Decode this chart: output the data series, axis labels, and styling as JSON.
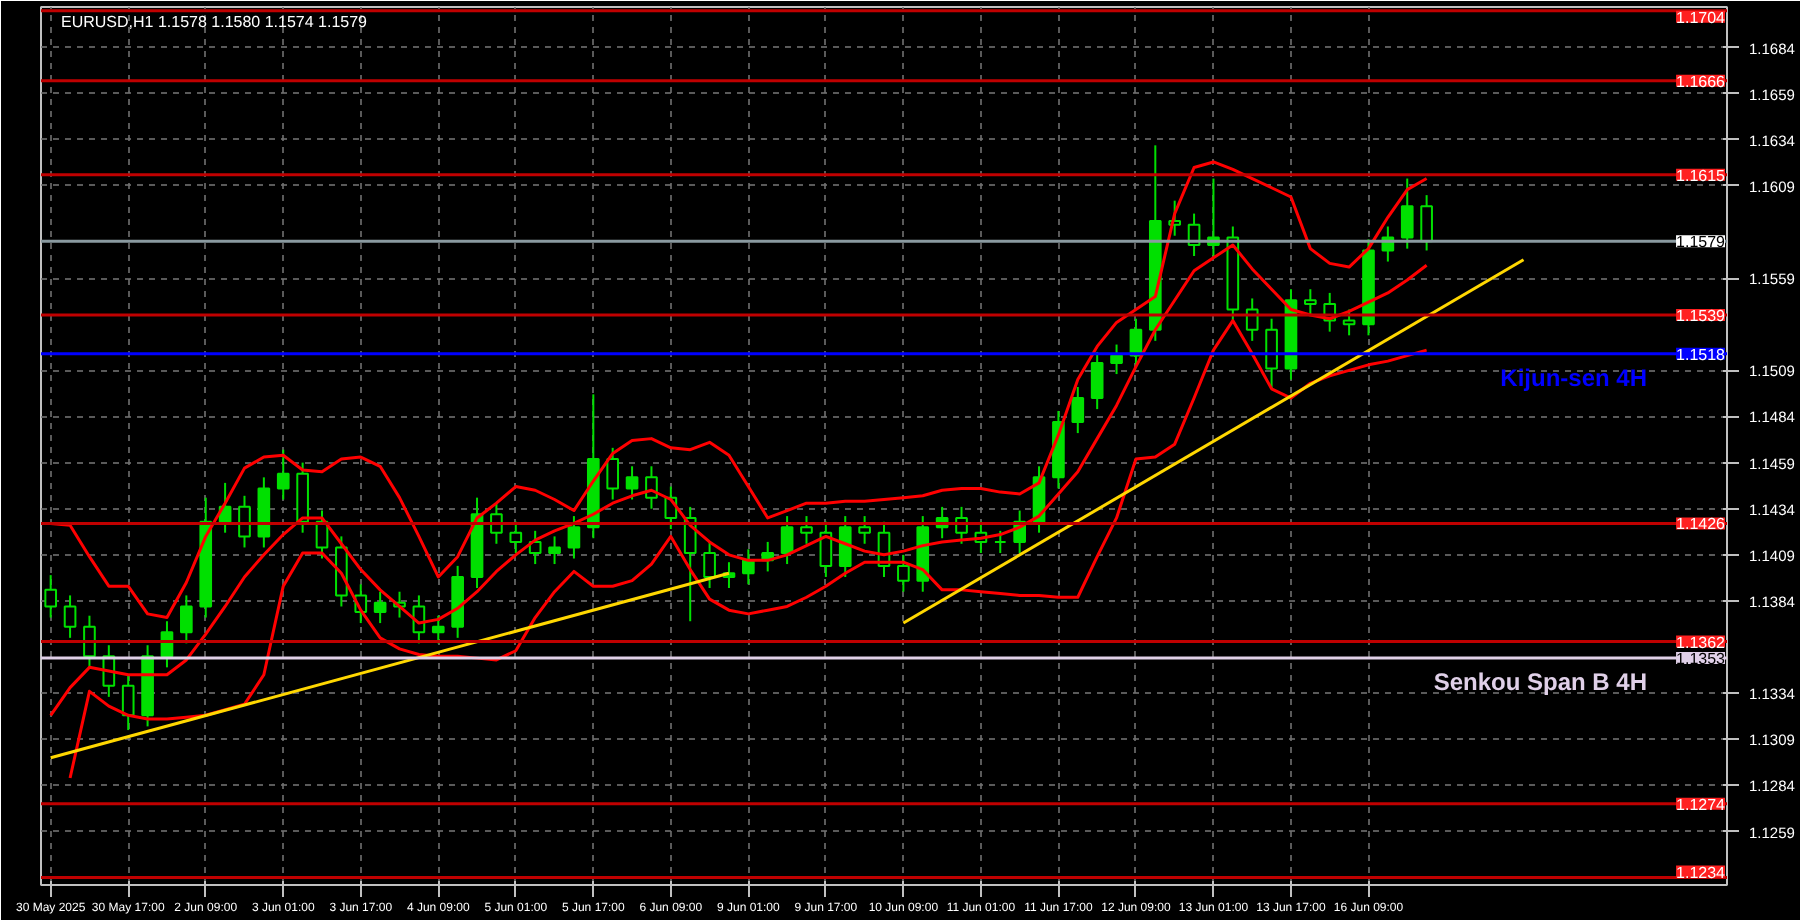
{
  "chart_data": {
    "type": "candlestick",
    "title": "EURUSD,H1  1.1578 1.1580 1.1574 1.1579",
    "color": "#00e000",
    "categories": [
      "30 May 2025",
      null,
      null,
      null,
      "30 May 17:00",
      null,
      null,
      null,
      "2 Jun 09:00",
      null,
      null,
      null,
      "3 Jun 01:00",
      null,
      null,
      null,
      "3 Jun 17:00",
      null,
      null,
      null,
      "4 Jun 09:00",
      null,
      null,
      null,
      "5 Jun 01:00",
      null,
      null,
      null,
      "5 Jun 17:00",
      null,
      null,
      null,
      "6 Jun 09:00",
      null,
      null,
      null,
      "9 Jun 01:00",
      null,
      null,
      null,
      "9 Jun 17:00",
      null,
      null,
      null,
      "10 Jun 09:00",
      null,
      null,
      null,
      "11 Jun 01:00",
      null,
      null,
      null,
      "11 Jun 17:00",
      null,
      null,
      null,
      "12 Jun 09:00",
      null,
      null,
      null,
      "13 Jun 01:00",
      null,
      null,
      null,
      "13 Jun 17:00",
      null,
      null,
      null,
      "16 Jun 09:00",
      null,
      null,
      null,
      null,
      null,
      null,
      null,
      null,
      null,
      null,
      null,
      null,
      null,
      null,
      null,
      null,
      null,
      null
    ],
    "ohlc": [
      [
        1.139,
        1.1398,
        1.1375,
        1.1381
      ],
      [
        1.1381,
        1.1387,
        1.1364,
        1.137
      ],
      [
        1.137,
        1.1376,
        1.1348,
        1.1354
      ],
      [
        1.1354,
        1.136,
        1.1332,
        1.1338
      ],
      [
        1.1338,
        1.1344,
        1.1314,
        1.1322
      ],
      [
        1.1322,
        1.136,
        1.1316,
        1.1354
      ],
      [
        1.1354,
        1.1373,
        1.1348,
        1.1367
      ],
      [
        1.1367,
        1.1387,
        1.1361,
        1.1381
      ],
      [
        1.1381,
        1.144,
        1.1375,
        1.1427
      ],
      [
        1.1427,
        1.1448,
        1.1421,
        1.1435
      ],
      [
        1.1435,
        1.1441,
        1.1413,
        1.1419
      ],
      [
        1.1419,
        1.1451,
        1.1413,
        1.1445
      ],
      [
        1.1445,
        1.1466,
        1.1439,
        1.1453
      ],
      [
        1.1453,
        1.1459,
        1.1421,
        1.1427
      ],
      [
        1.1427,
        1.1433,
        1.1407,
        1.1413
      ],
      [
        1.1413,
        1.1419,
        1.1381,
        1.1387
      ],
      [
        1.1387,
        1.1393,
        1.1372,
        1.1378
      ],
      [
        1.1378,
        1.1389,
        1.1372,
        1.1383
      ],
      [
        1.1383,
        1.1389,
        1.1375,
        1.1381
      ],
      [
        1.1381,
        1.1387,
        1.1361,
        1.1367
      ],
      [
        1.1367,
        1.1376,
        1.1361,
        1.137
      ],
      [
        1.137,
        1.1403,
        1.1364,
        1.1397
      ],
      [
        1.1397,
        1.144,
        1.1391,
        1.1431
      ],
      [
        1.1431,
        1.1437,
        1.1415,
        1.1421
      ],
      [
        1.1421,
        1.1427,
        1.141,
        1.1416
      ],
      [
        1.1416,
        1.1422,
        1.1404,
        1.141
      ],
      [
        1.141,
        1.1419,
        1.1404,
        1.1413
      ],
      [
        1.1413,
        1.143,
        1.1407,
        1.1424
      ],
      [
        1.1424,
        1.1496,
        1.1418,
        1.1461
      ],
      [
        1.1461,
        1.1467,
        1.1439,
        1.1445
      ],
      [
        1.1445,
        1.1457,
        1.1439,
        1.1451
      ],
      [
        1.1451,
        1.1457,
        1.1434,
        1.144
      ],
      [
        1.144,
        1.1446,
        1.1423,
        1.1429
      ],
      [
        1.1429,
        1.1435,
        1.1373,
        1.141
      ],
      [
        1.141,
        1.1416,
        1.1391,
        1.1397
      ],
      [
        1.1397,
        1.1405,
        1.1391,
        1.1399
      ],
      [
        1.1399,
        1.1412,
        1.1393,
        1.1406
      ],
      [
        1.1406,
        1.1416,
        1.14,
        1.141
      ],
      [
        1.141,
        1.143,
        1.1404,
        1.1424
      ],
      [
        1.1424,
        1.143,
        1.1415,
        1.1421
      ],
      [
        1.1421,
        1.1427,
        1.1397,
        1.1403
      ],
      [
        1.1403,
        1.143,
        1.1397,
        1.1424
      ],
      [
        1.1424,
        1.143,
        1.1415,
        1.1421
      ],
      [
        1.1421,
        1.1427,
        1.1397,
        1.1403
      ],
      [
        1.1403,
        1.1409,
        1.1389,
        1.1395
      ],
      [
        1.1395,
        1.143,
        1.1389,
        1.1424
      ],
      [
        1.1424,
        1.1435,
        1.1418,
        1.1429
      ],
      [
        1.1429,
        1.1435,
        1.1415,
        1.1421
      ],
      [
        1.1421,
        1.1427,
        1.141,
        1.1416
      ],
      [
        1.1416,
        1.1422,
        1.141,
        1.1416
      ],
      [
        1.1416,
        1.1433,
        1.141,
        1.1427
      ],
      [
        1.1427,
        1.1457,
        1.1421,
        1.1451
      ],
      [
        1.1451,
        1.1487,
        1.1445,
        1.1481
      ],
      [
        1.1481,
        1.15,
        1.1475,
        1.1494
      ],
      [
        1.1494,
        1.1519,
        1.1488,
        1.1513
      ],
      [
        1.1513,
        1.1523,
        1.1507,
        1.1517
      ],
      [
        1.1517,
        1.1537,
        1.1511,
        1.1531
      ],
      [
        1.1531,
        1.1631,
        1.1525,
        1.159
      ],
      [
        1.159,
        1.1601,
        1.1582,
        1.1588
      ],
      [
        1.1588,
        1.1594,
        1.1571,
        1.1577
      ],
      [
        1.1577,
        1.1613,
        1.1571,
        1.1581
      ],
      [
        1.1581,
        1.1587,
        1.1536,
        1.1542
      ],
      [
        1.1542,
        1.1548,
        1.1525,
        1.1531
      ],
      [
        1.1531,
        1.1537,
        1.1499,
        1.151
      ],
      [
        1.151,
        1.1553,
        1.1504,
        1.1547
      ],
      [
        1.1547,
        1.1553,
        1.1539,
        1.1545
      ],
      [
        1.1545,
        1.1551,
        1.153,
        1.1536
      ],
      [
        1.1536,
        1.1542,
        1.1528,
        1.1534
      ],
      [
        1.1534,
        1.158,
        1.1528,
        1.1574
      ],
      [
        1.1574,
        1.1587,
        1.1568,
        1.1581
      ],
      [
        1.1581,
        1.1613,
        1.1575,
        1.1598
      ],
      [
        1.1598,
        1.1604,
        1.1574,
        1.1579
      ],
      null,
      null,
      null,
      null,
      null,
      null,
      null,
      null,
      null,
      null,
      null,
      null,
      null,
      null,
      null
    ],
    "series": [
      {
        "type": "line",
        "color": "#ff0000",
        "values": [
          1.1426,
          1.1425,
          1.1408,
          1.1392,
          1.1392,
          1.1377,
          1.1375,
          1.1394,
          1.1419,
          1.1437,
          1.1456,
          1.1462,
          1.1463,
          1.1455,
          1.1454,
          1.1461,
          1.1462,
          1.1457,
          1.144,
          1.1419,
          1.1397,
          1.1408,
          1.1429,
          1.1437,
          1.1446,
          1.1444,
          1.1439,
          1.1433,
          1.1449,
          1.1464,
          1.1471,
          1.1472,
          1.1467,
          1.1466,
          1.147,
          1.1463,
          1.1446,
          1.1429,
          1.1433,
          1.1437,
          1.1437,
          1.1438,
          1.1438,
          1.1439,
          1.144,
          1.1441,
          1.1444,
          1.1445,
          1.1445,
          1.1443,
          1.1442,
          1.1448,
          1.1474,
          1.1504,
          1.1522,
          1.1535,
          1.1542,
          1.1549,
          1.1594,
          1.1619,
          1.1622,
          1.1618,
          1.1613,
          1.1608,
          1.1603,
          1.1575,
          1.1567,
          1.1565,
          1.1575,
          1.1592,
          1.1607,
          1.1613,
          null,
          null,
          null,
          null,
          null,
          null,
          null,
          null,
          null,
          null,
          null,
          null,
          null,
          null,
          null
        ]
      },
      {
        "type": "line",
        "color": "#ff0000",
        "values": [
          1.1322,
          1.1337,
          1.1348,
          1.1346,
          1.1344,
          1.1344,
          1.1344,
          1.1352,
          1.1366,
          1.1381,
          1.1397,
          1.1409,
          1.142,
          1.1429,
          1.1429,
          1.1415,
          1.1401,
          1.139,
          1.1381,
          1.1372,
          1.1374,
          1.138,
          1.1389,
          1.14,
          1.1409,
          1.1417,
          1.1422,
          1.1426,
          1.1431,
          1.1437,
          1.1441,
          1.1444,
          1.1439,
          1.1425,
          1.1416,
          1.1409,
          1.1406,
          1.1406,
          1.1409,
          1.1414,
          1.1419,
          1.1415,
          1.1411,
          1.1409,
          1.1411,
          1.1414,
          1.1416,
          1.1417,
          1.1418,
          1.142,
          1.1424,
          1.143,
          1.1442,
          1.1454,
          1.1472,
          1.149,
          1.1511,
          1.1531,
          1.1547,
          1.1563,
          1.157,
          1.1577,
          1.1564,
          1.1553,
          1.1542,
          1.1539,
          1.1537,
          1.1541,
          1.1546,
          1.1551,
          1.1558,
          1.1566,
          null,
          null,
          null,
          null,
          null,
          null,
          null,
          null,
          null,
          null,
          null,
          null,
          null,
          null,
          null
        ]
      },
      {
        "type": "line",
        "color": "#ff0000",
        "values": [
          null,
          1.1288,
          1.1335,
          1.1327,
          1.1322,
          1.132,
          1.132,
          1.1321,
          1.1322,
          1.1325,
          1.1328,
          1.1344,
          1.1392,
          1.141,
          1.141,
          1.1399,
          1.1379,
          1.1364,
          1.1358,
          1.1355,
          1.1354,
          1.1354,
          1.1353,
          1.1352,
          1.1357,
          1.1375,
          1.1389,
          1.14,
          1.1392,
          1.1392,
          1.1395,
          1.1404,
          1.1419,
          1.1401,
          1.1385,
          1.1379,
          1.1377,
          1.1379,
          1.1381,
          1.1386,
          1.1392,
          1.1399,
          1.1405,
          1.1405,
          1.1405,
          1.1401,
          1.139,
          1.139,
          1.1389,
          1.1388,
          1.1387,
          1.1387,
          1.1386,
          1.1386,
          1.1408,
          1.1429,
          1.1461,
          1.1462,
          1.1469,
          1.1494,
          1.152,
          1.1536,
          1.1518,
          1.1499,
          1.1494,
          1.1502,
          1.1506,
          1.1509,
          1.1512,
          1.1514,
          1.1517,
          1.152,
          null,
          null,
          null,
          null,
          null,
          null,
          null,
          null,
          null,
          null,
          null,
          null,
          null,
          null,
          null
        ]
      },
      {
        "type": "line",
        "color": "#ffd700",
        "values": [
          1.1299,
          null,
          null,
          null,
          null,
          null,
          null,
          null,
          null,
          null,
          null,
          null,
          null,
          null,
          null,
          null,
          null,
          null,
          null,
          null,
          null,
          null,
          null,
          null,
          null,
          null,
          null,
          null,
          null,
          null,
          null,
          null,
          null,
          null,
          null,
          1.1399,
          null,
          null,
          null,
          null,
          null,
          null,
          null,
          null,
          null,
          null,
          null,
          null,
          null,
          null,
          null,
          null,
          null,
          null,
          null,
          null,
          null,
          null,
          null,
          null,
          null,
          null,
          null,
          null,
          null,
          null,
          null,
          null,
          null,
          null,
          null,
          null,
          null,
          null,
          null,
          null,
          null,
          null,
          null,
          null,
          null,
          null,
          null,
          null,
          null,
          null,
          null
        ]
      },
      {
        "type": "line",
        "color": "#ffd700",
        "values": [
          null,
          null,
          null,
          null,
          null,
          null,
          null,
          null,
          null,
          null,
          null,
          null,
          null,
          null,
          null,
          null,
          null,
          null,
          null,
          null,
          null,
          null,
          null,
          null,
          null,
          null,
          null,
          null,
          null,
          null,
          null,
          null,
          null,
          null,
          null,
          null,
          null,
          null,
          null,
          null,
          null,
          null,
          null,
          null,
          1.1372,
          null,
          null,
          null,
          null,
          null,
          null,
          null,
          null,
          null,
          null,
          null,
          null,
          null,
          null,
          null,
          null,
          null,
          null,
          null,
          null,
          null,
          null,
          null,
          null,
          null,
          null,
          null,
          null,
          null,
          null,
          null,
          1.1569,
          null,
          null,
          null,
          null,
          null,
          null,
          null,
          null,
          null,
          null
        ]
      }
    ],
    "ylim": [
      1.123,
      1.1706
    ],
    "yticks": [
      1.1259,
      1.1284,
      1.1309,
      1.1334,
      1.1384,
      1.1409,
      1.1434,
      1.1459,
      1.1484,
      1.1509,
      1.1559,
      1.1609,
      1.1634,
      1.1659,
      1.1684
    ],
    "grid": true,
    "ref_lines": [
      {
        "axis": "y",
        "value": 1.1704,
        "label": "1.1704",
        "color": "#c00000"
      },
      {
        "axis": "y",
        "value": 1.1666,
        "label": "1.1666",
        "color": "#c00000"
      },
      {
        "axis": "y",
        "value": 1.1615,
        "label": "1.1615",
        "color": "#c00000"
      },
      {
        "axis": "y",
        "value": 1.1579,
        "label": "1.1579",
        "color": "#8a9aa0"
      },
      {
        "axis": "y",
        "value": 1.1539,
        "label": "1.1539",
        "color": "#c00000"
      },
      {
        "axis": "y",
        "value": 1.1518,
        "label": "1.1518",
        "color": "#0000ff"
      },
      {
        "axis": "y",
        "value": 1.1426,
        "label": "1.1426",
        "color": "#c00000"
      },
      {
        "axis": "y",
        "value": 1.1362,
        "label": "1.1362",
        "color": "#c00000"
      },
      {
        "axis": "y",
        "value": 1.1353,
        "label": "1.1353",
        "color": "#e0d0e8"
      },
      {
        "axis": "y",
        "value": 1.1274,
        "label": "1.1274",
        "color": "#c00000"
      },
      {
        "axis": "y",
        "value": 1.1234,
        "label": "1.1234",
        "color": "#c00000"
      }
    ],
    "annotations": [
      {
        "text": "Kijun-sen 4H",
        "y": 1.1518
      },
      {
        "text": "Senkou Span B 4H",
        "y": 1.1353
      }
    ]
  }
}
